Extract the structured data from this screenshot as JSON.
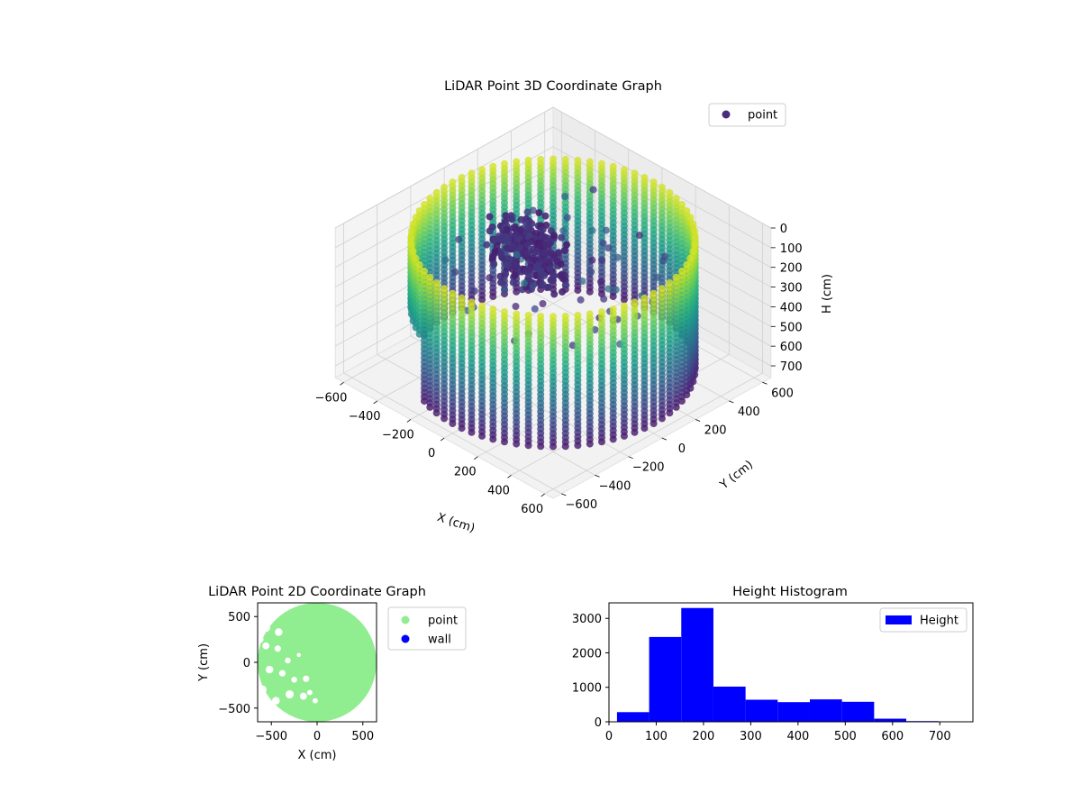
{
  "chart_data": [
    {
      "type": "scatter",
      "projection": "3d",
      "title": "LiDAR Point 3D Coordinate Graph",
      "xlabel": "X (cm)",
      "ylabel": "Y (cm)",
      "zlabel": "H (cm)",
      "xlim": [
        -650,
        650
      ],
      "ylim": [
        -650,
        650
      ],
      "zlim": [
        0,
        760
      ],
      "z_axis_inverted": true,
      "xticks": [
        -600,
        -400,
        -200,
        0,
        200,
        400,
        600
      ],
      "yticks": [
        -600,
        -400,
        -200,
        0,
        200,
        400,
        600
      ],
      "zticks": [
        0,
        100,
        200,
        300,
        400,
        500,
        600,
        700
      ],
      "colormap": "viridis",
      "series": [
        {
          "name": "point",
          "color": "#472d7b"
        }
      ],
      "description_points": {
        "outer_ring_radius_cm": 600,
        "outer_ring_height_range_cm": [
          50,
          720
        ],
        "inner_cluster_center_cm": [
          -120,
          -30
        ],
        "inner_cluster_height_range_cm": [
          50,
          300
        ]
      },
      "legend": "top-right",
      "grid": true
    },
    {
      "type": "scatter",
      "title": "LiDAR Point 2D Coordinate Graph",
      "xlabel": "X (cm)",
      "ylabel": "Y (cm)",
      "xlim": [
        -650,
        650
      ],
      "ylim": [
        -650,
        650
      ],
      "xticks": [
        -500,
        0,
        500
      ],
      "yticks": [
        -500,
        0,
        500
      ],
      "series": [
        {
          "name": "point",
          "color": "#90ee90"
        },
        {
          "name": "wall",
          "color": "#0000ff"
        }
      ],
      "legend": "outside-right",
      "grid": false
    },
    {
      "type": "bar",
      "subtype": "histogram",
      "title": "Height Histogram",
      "bin_edges": [
        17,
        85,
        153,
        221,
        289,
        357,
        425,
        493,
        561,
        629,
        697
      ],
      "values": [
        280,
        2460,
        3300,
        1020,
        640,
        570,
        650,
        580,
        90,
        20
      ],
      "xlim": [
        0,
        770
      ],
      "ylim": [
        0,
        3450
      ],
      "xticks": [
        0,
        100,
        200,
        300,
        400,
        500,
        600,
        700
      ],
      "yticks": [
        0,
        1000,
        2000,
        3000
      ],
      "series": [
        {
          "name": "Height",
          "color": "#0000ff"
        }
      ],
      "legend": "top-right",
      "grid": false
    }
  ]
}
